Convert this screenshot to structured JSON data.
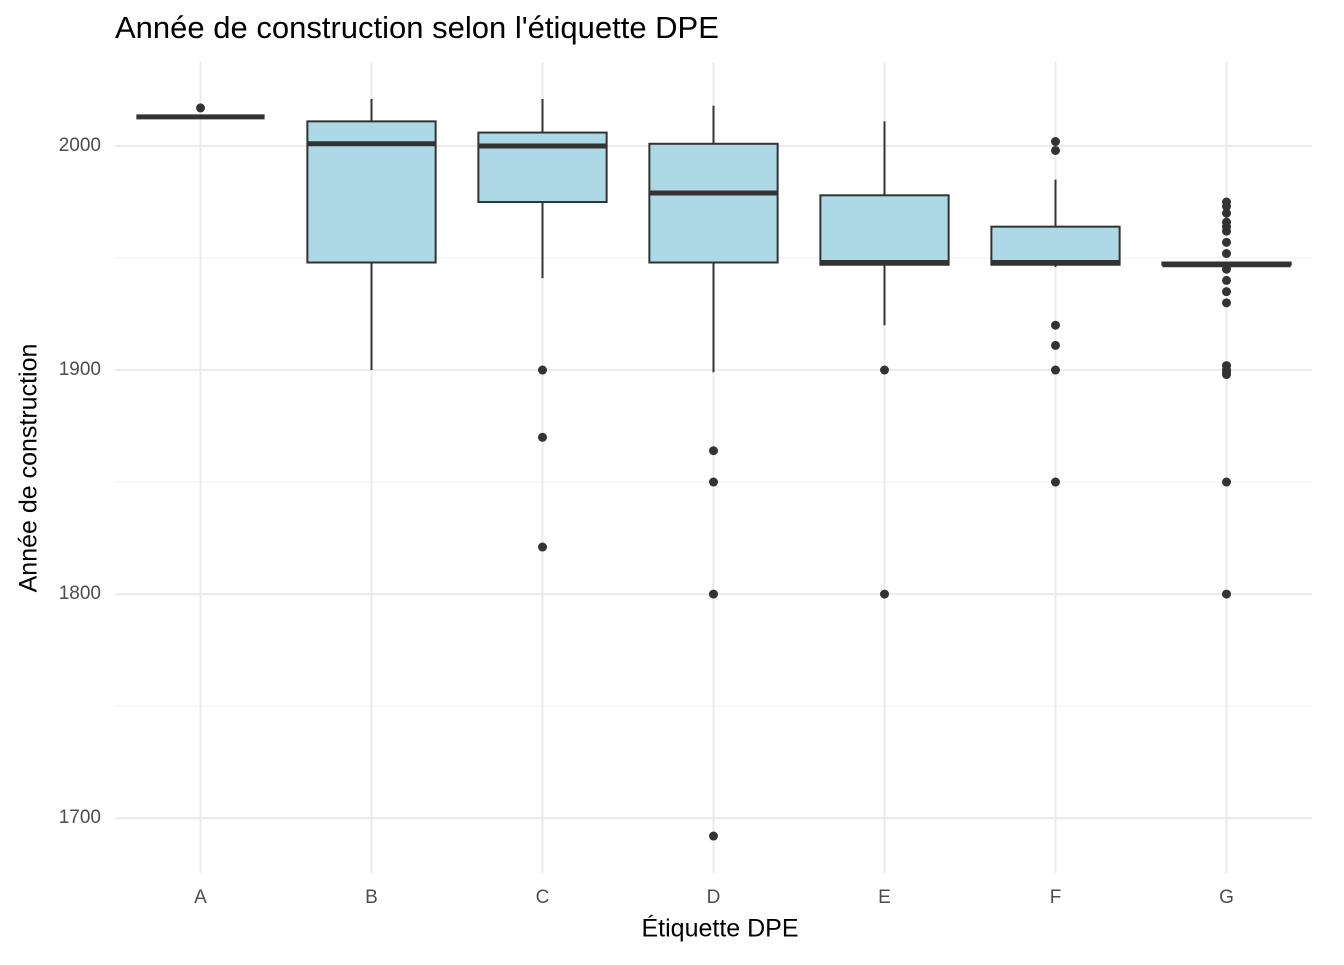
{
  "chart_data": {
    "type": "boxplot",
    "title": "Année de construction selon l'étiquette DPE",
    "x_label": "Étiquette DPE",
    "y_label": "Année de construction",
    "categories": [
      "A",
      "B",
      "C",
      "D",
      "E",
      "F",
      "G"
    ],
    "boxes": [
      {
        "low": 2013,
        "q1": 2013,
        "median": 2013,
        "q3": 2013,
        "high": 2013,
        "outliers": [
          2017
        ]
      },
      {
        "low": 1900,
        "q1": 1948,
        "median": 2001,
        "q3": 2011,
        "high": 2021,
        "outliers": []
      },
      {
        "low": 1941,
        "q1": 1975,
        "median": 2000,
        "q3": 2006,
        "high": 2021,
        "outliers": [
          1900,
          1870,
          1821
        ]
      },
      {
        "low": 1899,
        "q1": 1948,
        "median": 1979,
        "q3": 2001,
        "high": 2018,
        "outliers": [
          1864,
          1850,
          1800,
          1692
        ]
      },
      {
        "low": 1920,
        "q1": 1947,
        "median": 1948,
        "q3": 1978,
        "high": 2011,
        "outliers": [
          1900,
          1800
        ]
      },
      {
        "low": 1946,
        "q1": 1947,
        "median": 1948,
        "q3": 1964,
        "high": 1985,
        "outliers": [
          2002,
          1998,
          1920,
          1911,
          1900,
          1850
        ]
      },
      {
        "low": 1946,
        "q1": 1947,
        "median": 1947,
        "q3": 1948,
        "high": 1948,
        "outliers": [
          1975,
          1973,
          1970,
          1966,
          1964,
          1962,
          1957,
          1952,
          1945,
          1940,
          1935,
          1930,
          1902,
          1900,
          1899,
          1898,
          1850,
          1800
        ]
      }
    ],
    "fill": "#add8e6",
    "line_color": "#333333",
    "ylim": [
      1675.5,
      2037.5
    ],
    "yticks": [
      1700,
      1800,
      1900,
      2000
    ],
    "yminor_ticks": [
      1750,
      1850,
      1950
    ],
    "grid": true
  }
}
